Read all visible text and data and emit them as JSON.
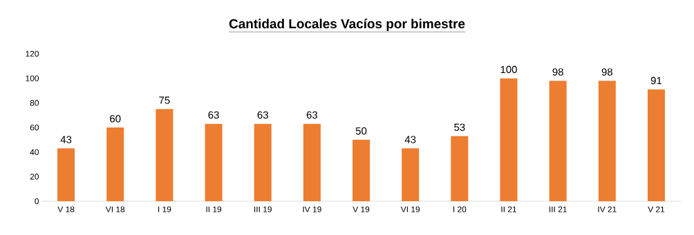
{
  "chart_data": {
    "type": "bar",
    "title": "Cantidad Locales Vacíos por bimestre",
    "categories": [
      "V 18",
      "VI 18",
      "I 19",
      "II 19",
      "III 19",
      "IV 19",
      "V 19",
      "VI 19",
      "I 20",
      "II 21",
      "III 21",
      "IV 21",
      "V 21"
    ],
    "values": [
      43,
      60,
      75,
      63,
      63,
      63,
      50,
      43,
      53,
      100,
      98,
      98,
      91
    ],
    "color": "#ed7d31",
    "data_labels": true,
    "ylim": [
      0,
      120
    ],
    "yticks": [
      0,
      20,
      40,
      60,
      80,
      100,
      120
    ]
  }
}
